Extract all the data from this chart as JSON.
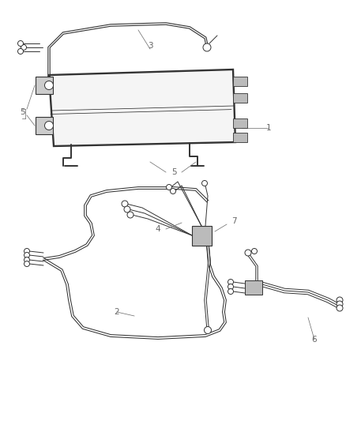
{
  "bg_color": "#ffffff",
  "line_color": "#333333",
  "label_color": "#666666",
  "fig_width": 4.38,
  "fig_height": 5.33,
  "dpi": 100,
  "lw_main": 1.4,
  "lw_thin": 0.7,
  "lw_label": 0.5,
  "font_size": 7.5
}
